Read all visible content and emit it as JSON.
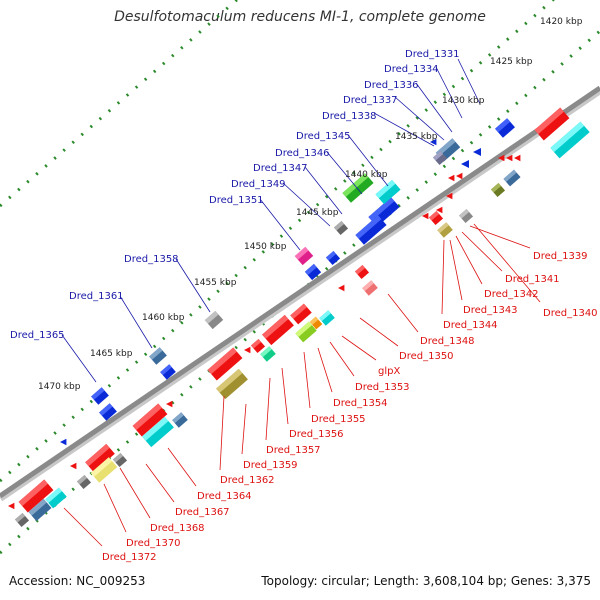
{
  "title": "Desulfotomaculum reducens MI-1, complete genome",
  "footer": {
    "accession": "Accession: NC_009253",
    "summary": "Topology: circular; Length: 3,608,104 bp; Genes: 3,375"
  },
  "colors": {
    "upper_label": "#1a1aa8",
    "lower_label": "#dd1111",
    "backbone": "#8a8a8a",
    "tick_dots": "#2a8a2a"
  },
  "kbp_ticks": [
    "1420 kbp",
    "1425 kbp",
    "1430 kbp",
    "1435 kbp",
    "1440 kbp",
    "1445 kbp",
    "1450 kbp",
    "1455 kbp",
    "1460 kbp",
    "1465 kbp",
    "1470 kbp"
  ],
  "upper_labels": [
    "Dred_1331",
    "Dred_1334",
    "Dred_1336",
    "Dred_1337",
    "Dred_1338",
    "Dred_1345",
    "Dred_1346",
    "Dred_1347",
    "Dred_1349",
    "Dred_1351",
    "Dred_1358",
    "Dred_1361",
    "Dred_1365"
  ],
  "lower_labels": [
    "Dred_1339",
    "Dred_1341",
    "Dred_1340",
    "Dred_1342",
    "Dred_1343",
    "Dred_1344",
    "Dred_1348",
    "Dred_1350",
    "glpX",
    "Dred_1353",
    "Dred_1354",
    "Dred_1355",
    "Dred_1356",
    "Dred_1357",
    "Dred_1359",
    "Dred_1362",
    "Dred_1364",
    "Dred_1367",
    "Dred_1368",
    "Dred_1370",
    "Dred_1372"
  ]
}
